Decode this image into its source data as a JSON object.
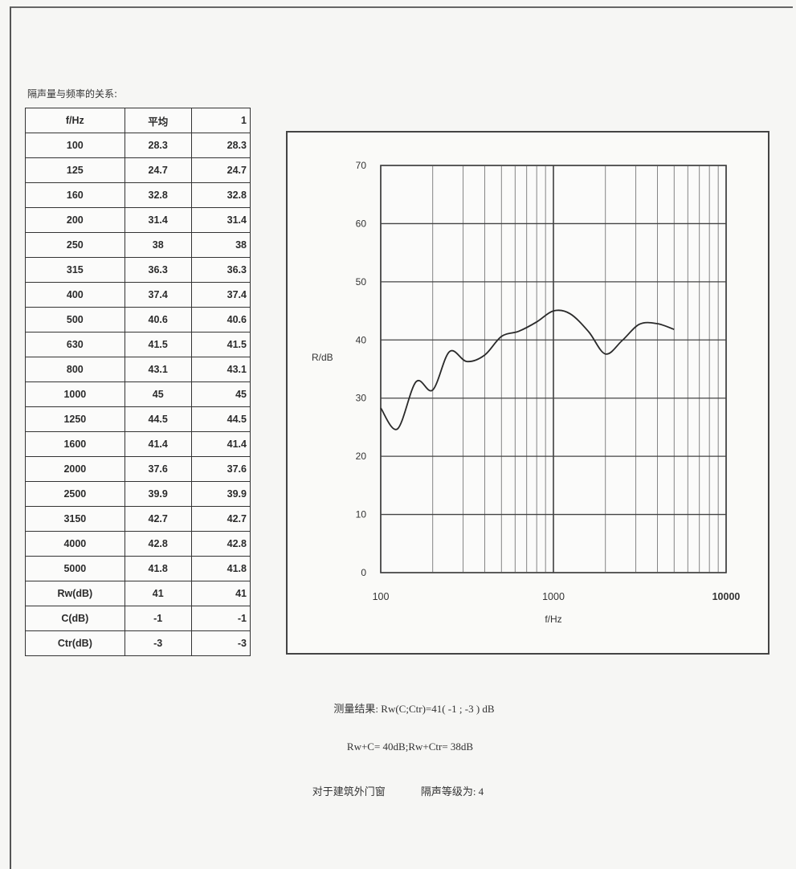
{
  "table": {
    "title": "隔声量与频率的关系:",
    "headers": [
      "f/Hz",
      "平均",
      "1"
    ],
    "rows": [
      [
        "100",
        "28.3",
        "28.3"
      ],
      [
        "125",
        "24.7",
        "24.7"
      ],
      [
        "160",
        "32.8",
        "32.8"
      ],
      [
        "200",
        "31.4",
        "31.4"
      ],
      [
        "250",
        "38",
        "38"
      ],
      [
        "315",
        "36.3",
        "36.3"
      ],
      [
        "400",
        "37.4",
        "37.4"
      ],
      [
        "500",
        "40.6",
        "40.6"
      ],
      [
        "630",
        "41.5",
        "41.5"
      ],
      [
        "800",
        "43.1",
        "43.1"
      ],
      [
        "1000",
        "45",
        "45"
      ],
      [
        "1250",
        "44.5",
        "44.5"
      ],
      [
        "1600",
        "41.4",
        "41.4"
      ],
      [
        "2000",
        "37.6",
        "37.6"
      ],
      [
        "2500",
        "39.9",
        "39.9"
      ],
      [
        "3150",
        "42.7",
        "42.7"
      ],
      [
        "4000",
        "42.8",
        "42.8"
      ],
      [
        "5000",
        "41.8",
        "41.8"
      ],
      [
        "Rw(dB)",
        "41",
        "41"
      ],
      [
        "C(dB)",
        "-1",
        "-1"
      ],
      [
        "Ctr(dB)",
        "-3",
        "-3"
      ]
    ]
  },
  "chart_data": {
    "type": "line",
    "xlabel": "f/Hz",
    "ylabel": "R/dB",
    "xscale": "log",
    "xlim": [
      100,
      10000
    ],
    "ylim": [
      0,
      70
    ],
    "xticks": [
      "100",
      "1000",
      "10000"
    ],
    "yticks": [
      "0",
      "10",
      "20",
      "30",
      "40",
      "50",
      "60",
      "70"
    ],
    "grid": true,
    "x": [
      100,
      125,
      160,
      200,
      250,
      315,
      400,
      500,
      630,
      800,
      1000,
      1250,
      1600,
      2000,
      2500,
      3150,
      4000,
      5000
    ],
    "series": [
      {
        "values": [
          28.3,
          24.7,
          32.8,
          31.4,
          38,
          36.3,
          37.4,
          40.6,
          41.5,
          43.1,
          45,
          44.5,
          41.4,
          37.6,
          39.9,
          42.7,
          42.8,
          41.8
        ],
        "color": "#2a2a2a"
      }
    ]
  },
  "results": {
    "line1": "测量结果: Rw(C;Ctr)=41( -1 ; -3 ) dB",
    "line2": "Rw+C= 40dB;Rw+Ctr= 38dB",
    "line3_a": "对于建筑外门窗",
    "line3_b": "隔声等级为: 4"
  }
}
